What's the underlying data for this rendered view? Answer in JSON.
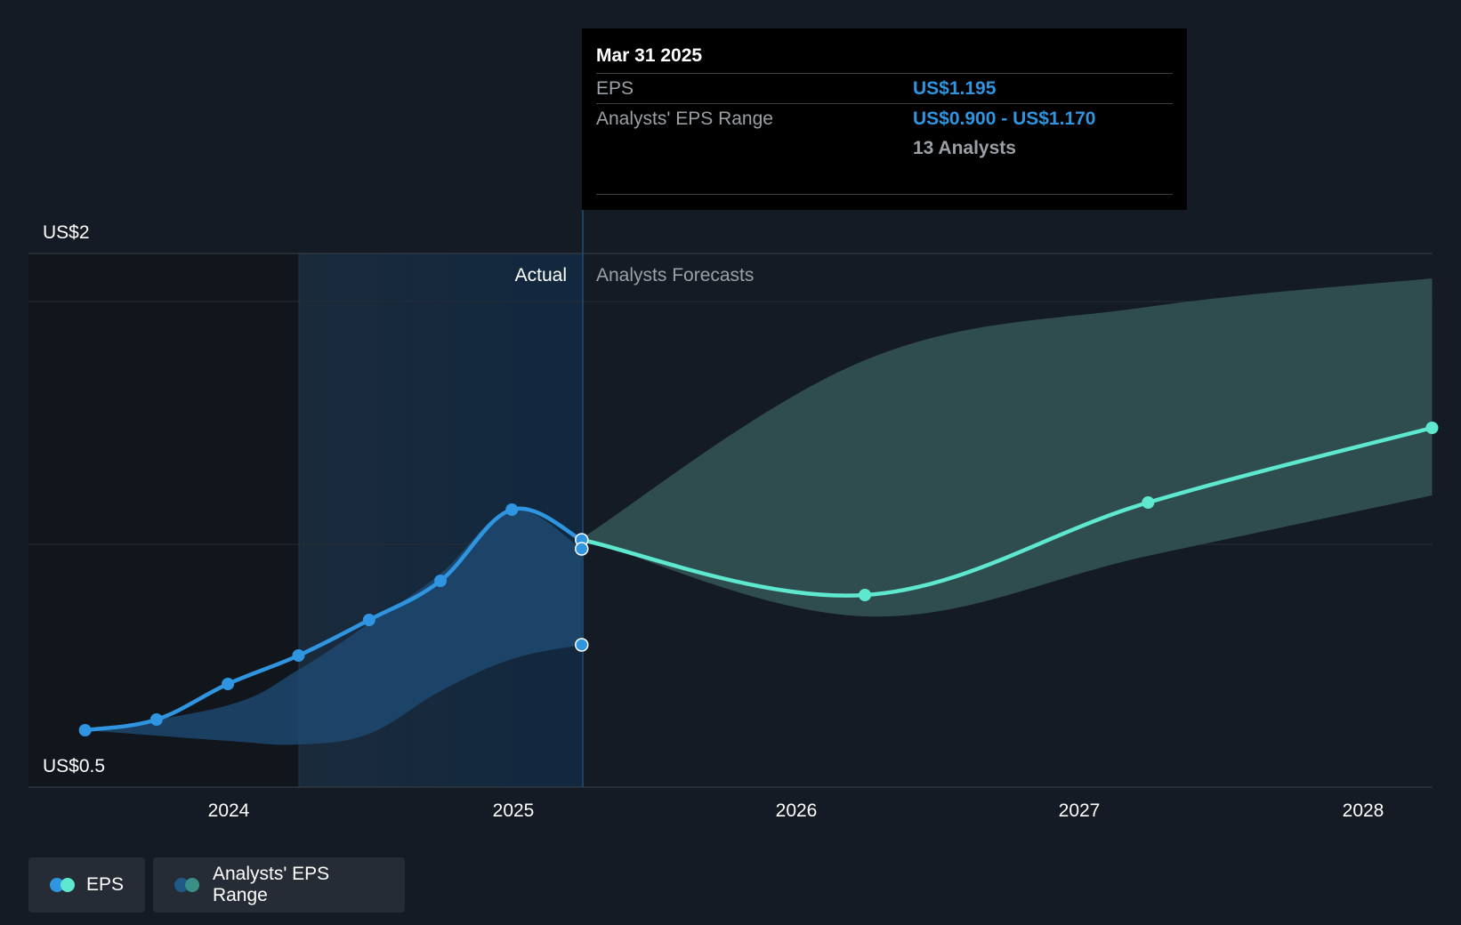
{
  "chart_data": {
    "type": "line",
    "y_axis": {
      "labels": [
        "US$2",
        "US$0.5"
      ],
      "range": [
        0.5,
        2.0
      ]
    },
    "x_axis": {
      "ticks": [
        "2024",
        "2025",
        "2026",
        "2027",
        "2028"
      ]
    },
    "regions": {
      "actual_label": "Actual",
      "forecast_label": "Analysts Forecasts"
    },
    "series": [
      {
        "name": "EPS",
        "kind": "actual",
        "color": "#2f95e0",
        "points": [
          {
            "x": "2023-06-30",
            "y": 0.66
          },
          {
            "x": "2023-09-30",
            "y": 0.69
          },
          {
            "x": "2023-12-31",
            "y": 0.79
          },
          {
            "x": "2024-03-31",
            "y": 0.87
          },
          {
            "x": "2024-06-30",
            "y": 0.97
          },
          {
            "x": "2024-09-30",
            "y": 1.08
          },
          {
            "x": "2024-12-31",
            "y": 1.28
          },
          {
            "x": "2025-03-31",
            "y": 1.195
          }
        ]
      },
      {
        "name": "EPS",
        "kind": "forecast",
        "color": "#5ee8cf",
        "points": [
          {
            "x": "2025-03-31",
            "y": 1.195
          },
          {
            "x": "2026-03-31",
            "y": 1.04
          },
          {
            "x": "2027-03-31",
            "y": 1.3
          },
          {
            "x": "2028-03-31",
            "y": 1.51
          }
        ]
      }
    ],
    "range_bands": [
      {
        "name": "Analysts' EPS Range",
        "color": "#2f95e0",
        "points": [
          {
            "x": "2023-06-30",
            "low": 0.66,
            "high": 0.66
          },
          {
            "x": "2023-12-31",
            "low": 0.63,
            "high": 0.73
          },
          {
            "x": "2024-03-31",
            "low": 0.62,
            "high": 0.83
          },
          {
            "x": "2024-06-30",
            "low": 0.65,
            "high": 0.96
          },
          {
            "x": "2024-09-30",
            "low": 0.77,
            "high": 1.1
          },
          {
            "x": "2024-12-31",
            "low": 0.86,
            "high": 1.28
          },
          {
            "x": "2025-03-31",
            "low": 0.9,
            "high": 1.17
          }
        ]
      },
      {
        "name": "Analysts' EPS Range",
        "color": "#5ee8cf",
        "points": [
          {
            "x": "2025-03-31",
            "low": 1.2,
            "high": 1.2
          },
          {
            "x": "2026-03-31",
            "low": 0.98,
            "high": 1.7
          },
          {
            "x": "2027-03-31",
            "low": 1.15,
            "high": 1.85
          },
          {
            "x": "2028-03-31",
            "low": 1.32,
            "high": 1.93
          }
        ]
      }
    ],
    "tooltip": {
      "date": "Mar 31 2025",
      "eps_label": "EPS",
      "eps_value": "US$1.195",
      "range_label": "Analysts' EPS Range",
      "range_value": "US$0.900 - US$1.170",
      "analysts": "13 Analysts"
    },
    "legend": [
      "EPS",
      "Analysts' EPS Range"
    ],
    "legend_placement": "bottom-left",
    "grid": true
  },
  "colors": {
    "background": "#151b24",
    "actual_line": "#2f95e0",
    "forecast_line": "#5ee8cf",
    "forecast_band": "#2f4d4f"
  }
}
